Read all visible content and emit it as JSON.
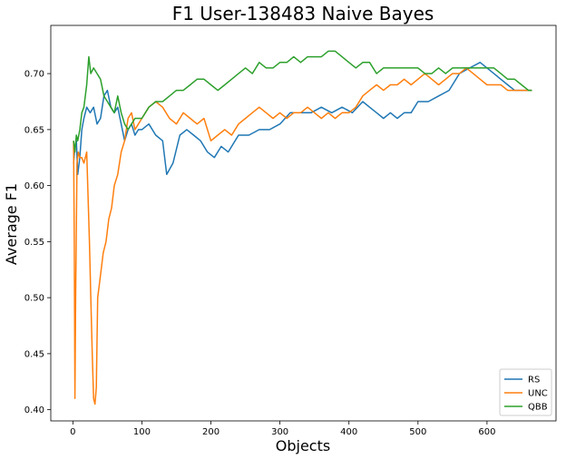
{
  "chart_data": {
    "type": "line",
    "title": "F1 User-138483 Naive Bayes",
    "xlabel": "Objects",
    "ylabel": "Average F1",
    "xlim": [
      -32,
      700
    ],
    "ylim": [
      0.39,
      0.743
    ],
    "xticks": [
      "0",
      "100",
      "200",
      "300",
      "400",
      "500",
      "600"
    ],
    "xtick_values": [
      0,
      100,
      200,
      300,
      400,
      500,
      600
    ],
    "yticks": [
      "0.40",
      "0.45",
      "0.50",
      "0.55",
      "0.60",
      "0.65",
      "0.70"
    ],
    "ytick_values": [
      0.4,
      0.45,
      0.5,
      0.55,
      0.6,
      0.65,
      0.7
    ],
    "grid": false,
    "legend_position": "lower-right",
    "series": [
      {
        "name": "RS",
        "color": "#1f77b4",
        "x": [
          1,
          3,
          5,
          7,
          10,
          13,
          16,
          20,
          25,
          30,
          35,
          40,
          45,
          50,
          55,
          60,
          65,
          70,
          75,
          80,
          85,
          90,
          95,
          100,
          110,
          120,
          130,
          136,
          145,
          155,
          165,
          175,
          185,
          195,
          205,
          215,
          225,
          240,
          255,
          270,
          285,
          300,
          315,
          330,
          345,
          360,
          375,
          390,
          405,
          420,
          430,
          440,
          450,
          460,
          470,
          480,
          490,
          500,
          515,
          530,
          545,
          560,
          575,
          590,
          600,
          610,
          620,
          630,
          640,
          650,
          660,
          665
        ],
        "values": [
          0.62,
          0.635,
          0.64,
          0.61,
          0.625,
          0.65,
          0.66,
          0.67,
          0.665,
          0.67,
          0.655,
          0.66,
          0.68,
          0.685,
          0.67,
          0.665,
          0.67,
          0.655,
          0.64,
          0.65,
          0.655,
          0.645,
          0.65,
          0.65,
          0.655,
          0.645,
          0.64,
          0.61,
          0.62,
          0.645,
          0.65,
          0.645,
          0.64,
          0.63,
          0.625,
          0.635,
          0.63,
          0.645,
          0.645,
          0.65,
          0.65,
          0.655,
          0.665,
          0.665,
          0.665,
          0.67,
          0.665,
          0.67,
          0.665,
          0.675,
          0.67,
          0.665,
          0.66,
          0.665,
          0.66,
          0.665,
          0.665,
          0.675,
          0.675,
          0.68,
          0.685,
          0.7,
          0.705,
          0.71,
          0.705,
          0.7,
          0.695,
          0.69,
          0.685,
          0.685,
          0.685,
          0.685
        ]
      },
      {
        "name": "UNC",
        "color": "#ff7f0e",
        "x": [
          1,
          2,
          3,
          4,
          6,
          8,
          10,
          13,
          16,
          20,
          24,
          26,
          28,
          30,
          32,
          34,
          36,
          40,
          44,
          48,
          52,
          56,
          60,
          65,
          70,
          75,
          80,
          85,
          90,
          95,
          100,
          110,
          120,
          130,
          140,
          150,
          160,
          170,
          180,
          190,
          200,
          210,
          220,
          230,
          240,
          250,
          260,
          270,
          280,
          290,
          300,
          310,
          320,
          330,
          340,
          350,
          360,
          370,
          380,
          390,
          400,
          410,
          420,
          430,
          440,
          450,
          460,
          470,
          480,
          490,
          500,
          510,
          520,
          530,
          540,
          550,
          560,
          570,
          580,
          590,
          600,
          610,
          620,
          630,
          640,
          650,
          660,
          665
        ],
        "values": [
          0.64,
          0.55,
          0.41,
          0.5,
          0.62,
          0.63,
          0.625,
          0.625,
          0.62,
          0.63,
          0.55,
          0.5,
          0.45,
          0.41,
          0.405,
          0.42,
          0.5,
          0.52,
          0.54,
          0.55,
          0.57,
          0.58,
          0.6,
          0.61,
          0.63,
          0.64,
          0.66,
          0.665,
          0.65,
          0.655,
          0.66,
          0.67,
          0.675,
          0.67,
          0.66,
          0.655,
          0.665,
          0.66,
          0.655,
          0.66,
          0.64,
          0.645,
          0.65,
          0.645,
          0.655,
          0.66,
          0.665,
          0.67,
          0.665,
          0.66,
          0.665,
          0.66,
          0.665,
          0.665,
          0.67,
          0.665,
          0.66,
          0.665,
          0.66,
          0.665,
          0.665,
          0.67,
          0.68,
          0.685,
          0.69,
          0.685,
          0.69,
          0.69,
          0.695,
          0.69,
          0.695,
          0.7,
          0.695,
          0.69,
          0.695,
          0.7,
          0.7,
          0.705,
          0.7,
          0.695,
          0.69,
          0.69,
          0.69,
          0.685,
          0.685,
          0.685,
          0.685,
          0.685
        ]
      },
      {
        "name": "QBB",
        "color": "#2ca02c",
        "x": [
          1,
          3,
          5,
          7,
          10,
          13,
          16,
          20,
          23,
          26,
          30,
          35,
          40,
          45,
          50,
          55,
          60,
          65,
          70,
          75,
          80,
          90,
          100,
          110,
          120,
          130,
          140,
          150,
          160,
          170,
          180,
          190,
          200,
          210,
          220,
          230,
          240,
          250,
          260,
          270,
          280,
          290,
          300,
          310,
          320,
          330,
          340,
          350,
          360,
          370,
          380,
          390,
          400,
          410,
          420,
          430,
          440,
          450,
          460,
          470,
          480,
          490,
          500,
          510,
          520,
          530,
          540,
          550,
          560,
          570,
          580,
          590,
          600,
          610,
          620,
          630,
          640,
          650,
          660,
          665
        ],
        "values": [
          0.64,
          0.63,
          0.645,
          0.64,
          0.65,
          0.665,
          0.67,
          0.69,
          0.715,
          0.7,
          0.705,
          0.7,
          0.695,
          0.68,
          0.675,
          0.67,
          0.665,
          0.68,
          0.665,
          0.655,
          0.65,
          0.66,
          0.66,
          0.67,
          0.675,
          0.675,
          0.68,
          0.685,
          0.685,
          0.69,
          0.695,
          0.695,
          0.69,
          0.685,
          0.69,
          0.695,
          0.7,
          0.705,
          0.7,
          0.71,
          0.705,
          0.705,
          0.71,
          0.71,
          0.715,
          0.71,
          0.715,
          0.715,
          0.715,
          0.72,
          0.72,
          0.715,
          0.71,
          0.705,
          0.71,
          0.71,
          0.7,
          0.705,
          0.705,
          0.705,
          0.705,
          0.705,
          0.705,
          0.7,
          0.7,
          0.705,
          0.7,
          0.705,
          0.705,
          0.705,
          0.705,
          0.705,
          0.705,
          0.705,
          0.7,
          0.695,
          0.695,
          0.69,
          0.685,
          0.685
        ]
      }
    ]
  }
}
